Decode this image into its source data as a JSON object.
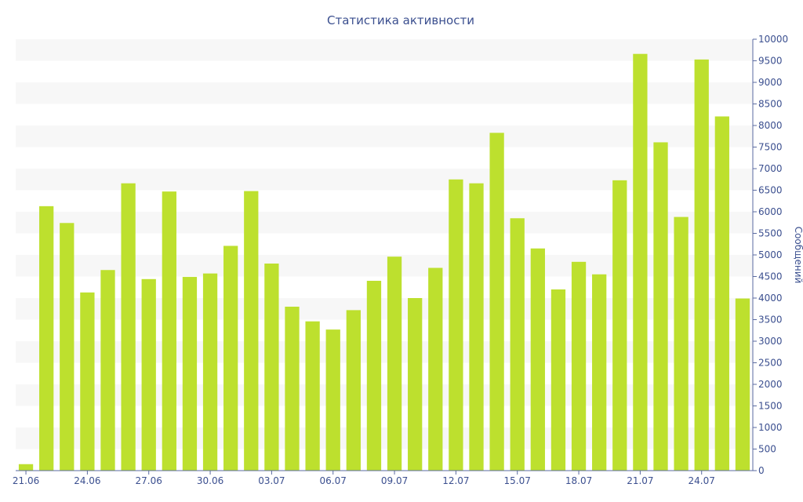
{
  "colors": {
    "bar": "#bde02e",
    "band": "#f7f7f7",
    "text": "#3b4f8f",
    "axis": "#5a6aa0"
  },
  "chart_data": {
    "type": "bar",
    "title": "Статистика активности",
    "ylabel": "Сообщений",
    "xlabel": "",
    "ylim": [
      0,
      10000
    ],
    "ytick_step": 500,
    "y_axis_side": "right",
    "grid": "alternating horizontal bands",
    "categories": [
      "21.06",
      "22.06",
      "23.06",
      "24.06",
      "25.06",
      "26.06",
      "27.06",
      "28.06",
      "29.06",
      "30.06",
      "01.07",
      "02.07",
      "03.07",
      "04.07",
      "05.07",
      "06.07",
      "07.07",
      "08.07",
      "09.07",
      "10.07",
      "11.07",
      "12.07",
      "13.07",
      "14.07",
      "15.07",
      "16.07",
      "17.07",
      "18.07",
      "19.07",
      "20.07",
      "21.07",
      "22.07",
      "23.07",
      "24.07",
      "25.07",
      "26.07"
    ],
    "xticks": [
      "21.06",
      "24.06",
      "27.06",
      "30.06",
      "03.07",
      "06.07",
      "09.07",
      "12.07",
      "15.07",
      "18.07",
      "21.07",
      "24.07"
    ],
    "values": [
      150,
      6130,
      5740,
      4130,
      4650,
      6660,
      4440,
      6470,
      4490,
      4570,
      5210,
      6480,
      4800,
      3800,
      3460,
      3270,
      3720,
      4400,
      4960,
      4000,
      4700,
      6750,
      6660,
      7830,
      5850,
      5150,
      4200,
      4840,
      4550,
      6730,
      9660,
      7610,
      5880,
      9530,
      8210,
      3990
    ]
  }
}
